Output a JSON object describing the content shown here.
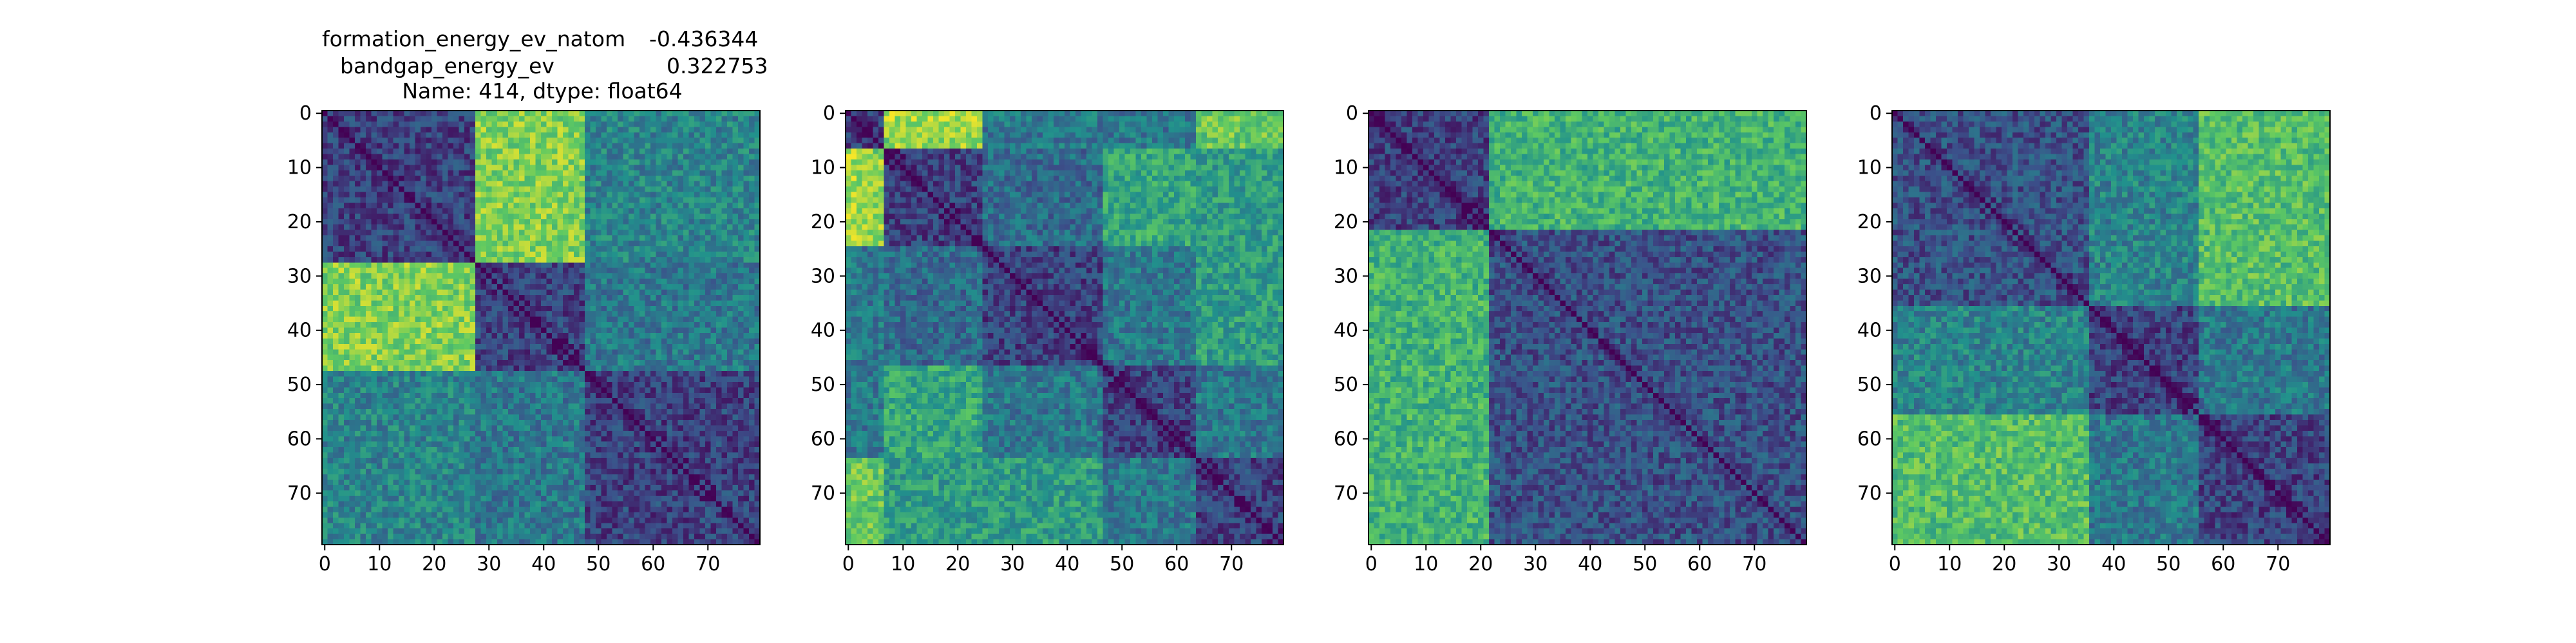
{
  "figure": {
    "title_lines": [
      {
        "label": "formation_energy_ev_natom",
        "value": "-0.436344"
      },
      {
        "label": "bandgap_energy_ev",
        "value": "0.322753"
      },
      {
        "label": "Name: 414, dtype: float64",
        "value": ""
      }
    ]
  },
  "chart_data": [
    {
      "type": "heatmap",
      "colormap": "viridis",
      "size": 80,
      "xticks": [
        0,
        10,
        20,
        30,
        40,
        50,
        60,
        70
      ],
      "yticks": [
        0,
        10,
        20,
        30,
        40,
        50,
        60,
        70
      ],
      "xlim": [
        -0.5,
        79.5
      ],
      "ylim": [
        79.5,
        -0.5
      ],
      "blocks": [
        [
          0,
          28
        ],
        [
          28,
          48
        ],
        [
          48,
          80
        ]
      ],
      "block_values": [
        [
          0.2,
          0.8,
          0.45
        ],
        [
          0.8,
          0.2,
          0.4
        ],
        [
          0.45,
          0.4,
          0.2
        ]
      ]
    },
    {
      "type": "heatmap",
      "colormap": "viridis",
      "size": 80,
      "xticks": [
        0,
        10,
        20,
        30,
        40,
        50,
        60,
        70
      ],
      "yticks": [
        0,
        10,
        20,
        30,
        40,
        50,
        60,
        70
      ],
      "xlim": [
        -0.5,
        79.5
      ],
      "ylim": [
        79.5,
        -0.5
      ],
      "blocks": [
        [
          0,
          7
        ],
        [
          7,
          25
        ],
        [
          25,
          47
        ],
        [
          47,
          64
        ],
        [
          64,
          80
        ]
      ],
      "block_values": [
        [
          0.2,
          0.85,
          0.4,
          0.4,
          0.75
        ],
        [
          0.85,
          0.2,
          0.35,
          0.6,
          0.55
        ],
        [
          0.4,
          0.35,
          0.2,
          0.4,
          0.55
        ],
        [
          0.4,
          0.6,
          0.4,
          0.2,
          0.4
        ],
        [
          0.75,
          0.55,
          0.55,
          0.4,
          0.2
        ]
      ]
    },
    {
      "type": "heatmap",
      "colormap": "viridis",
      "size": 80,
      "xticks": [
        0,
        10,
        20,
        30,
        40,
        50,
        60,
        70
      ],
      "yticks": [
        0,
        10,
        20,
        30,
        40,
        50,
        60,
        70
      ],
      "xlim": [
        -0.5,
        79.5
      ],
      "ylim": [
        79.5,
        -0.5
      ],
      "blocks": [
        [
          0,
          22
        ],
        [
          22,
          80
        ]
      ],
      "block_values": [
        [
          0.2,
          0.65
        ],
        [
          0.65,
          0.25
        ]
      ]
    },
    {
      "type": "heatmap",
      "colormap": "viridis",
      "size": 80,
      "xticks": [
        0,
        10,
        20,
        30,
        40,
        50,
        60,
        70
      ],
      "yticks": [
        0,
        10,
        20,
        30,
        40,
        50,
        60,
        70
      ],
      "xlim": [
        -0.5,
        79.5
      ],
      "ylim": [
        79.5,
        -0.5
      ],
      "blocks": [
        [
          0,
          36
        ],
        [
          36,
          56
        ],
        [
          56,
          80
        ]
      ],
      "block_values": [
        [
          0.25,
          0.45,
          0.7
        ],
        [
          0.45,
          0.2,
          0.4
        ],
        [
          0.7,
          0.4,
          0.2
        ]
      ]
    }
  ]
}
